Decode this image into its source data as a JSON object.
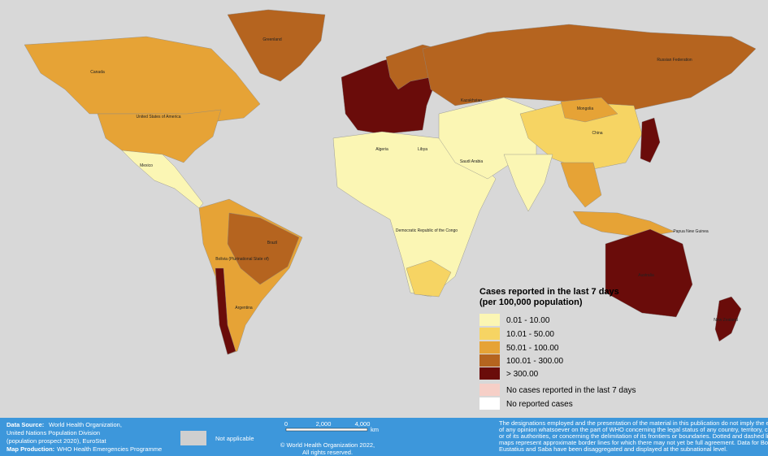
{
  "map_labels": [
    "Greenland",
    "Canada",
    "United States of America",
    "Russian Federation",
    "Brazil",
    "Australia",
    "China",
    "Mongolia",
    "Kazakhstan",
    "Argentina",
    "Bolivia (Plurinational State of)",
    "Democratic Republic of the Congo",
    "Algeria",
    "Libya",
    "Mexico",
    "New Zealand",
    "Papua New Guinea",
    "Saudi Arabia"
  ],
  "legend": {
    "title_lines": [
      "Cases reported in the last 7 days",
      "(per 100,000 population)"
    ],
    "items": [
      {
        "label": "0.01 - 10.00",
        "color": "#fbf6b4"
      },
      {
        "label": "10.01 - 50.00",
        "color": "#f6d463"
      },
      {
        "label": "50.01 - 100.00",
        "color": "#e6a336"
      },
      {
        "label": "100.01 - 300.00",
        "color": "#b5641f"
      },
      {
        "label": "> 300.00",
        "color": "#6a0c0a"
      },
      {
        "label": "No cases reported in the last 7 days",
        "color": "#f6cfc7"
      },
      {
        "label": "No reported cases",
        "color": "#ffffff"
      }
    ]
  },
  "footer": {
    "source_label": "Data Source:",
    "source_lines": [
      " World Health Organization,",
      "United Nations Population Division",
      "(population prospect 2020), EuroStat"
    ],
    "production_label": "Map Production:",
    "production_text": " WHO Health Emergencies Programme",
    "not_applicable": "Not applicable",
    "scale_labels": [
      "0",
      "2,000",
      "4,000"
    ],
    "scale_unit": "km",
    "copyright_lines": [
      "© World Health Organization 2022,",
      "All rights reserved."
    ],
    "disclaimer_lines": [
      "The designations employed and the presentation of the material in this publication do not imply the expression",
      "of any opinion whatsoever on the part of WHO concerning the legal status of any country, territory, city or area",
      "or of its authorities, or concerning the delimitation of its frontiers or boundaries. Dotted and dashed lines on",
      "maps represent approximate border lines for which there may not yet be full agreement. Data for Bonaire, Sint",
      "Eustatius and Saba have been disaggregated and displayed at the subnational level."
    ]
  }
}
